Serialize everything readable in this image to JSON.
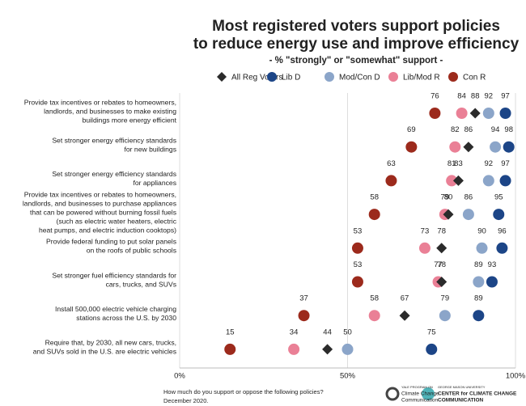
{
  "chart_data": {
    "type": "dot",
    "title": [
      "Most registered voters support policies",
      "to reduce energy use and improve efficiency"
    ],
    "subtitle": "- % \"strongly\" or \"somewhat\" support -",
    "categories": [
      [
        "Provide tax incentives or rebates to homeowners,",
        "landlords, and businesses to make existing",
        "buildings more energy efficient"
      ],
      [
        "Set stronger energy efficiency standards",
        "for new buildings"
      ],
      [
        "Set stronger energy efficiency standards",
        "for appliances"
      ],
      [
        "Provide tax incentives or rebates to homeowners,",
        "landlords, and businesses to purchase appliances",
        "that can be powered without burning fossil fuels",
        "(such as electric water heaters, electric",
        "heat pumps, and electric induction cooktops)"
      ],
      [
        "Provide federal funding to put solar panels",
        "on the roofs of public schools"
      ],
      [
        "Set stronger fuel efficiency standards for",
        "cars, trucks, and SUVs"
      ],
      [
        "Install 500,000 electric vehicle charging",
        "stations across the U.S. by 2030"
      ],
      [
        "Require that, by 2030, all new cars, trucks,",
        "and SUVs sold in the U.S. are electric vehicles"
      ]
    ],
    "series": [
      {
        "name": "All Reg Voters",
        "color": "#2b2b2b",
        "marker": "diamond",
        "values": [
          88,
          86,
          83,
          80,
          78,
          78,
          67,
          44
        ]
      },
      {
        "name": "Lib D",
        "color": "#1c4587",
        "marker": "circle",
        "values": [
          97,
          98,
          97,
          95,
          96,
          93,
          89,
          75
        ]
      },
      {
        "name": "Mod/Con D",
        "color": "#8ba5c9",
        "marker": "circle",
        "values": [
          92,
          94,
          92,
          86,
          90,
          89,
          79,
          50
        ]
      },
      {
        "name": "Lib/Mod R",
        "color": "#ea8096",
        "marker": "circle",
        "values": [
          84,
          82,
          81,
          79,
          73,
          77,
          58,
          34
        ]
      },
      {
        "name": "Con R",
        "color": "#9c2a1c",
        "marker": "circle",
        "values": [
          76,
          69,
          63,
          58,
          53,
          53,
          37,
          15
        ]
      }
    ],
    "xlim": [
      0,
      100
    ],
    "xticks": [
      {
        "value": 0,
        "label": "0%"
      },
      {
        "value": 50,
        "label": "50%"
      },
      {
        "value": 100,
        "label": "100%"
      }
    ],
    "grid": true,
    "footnote": [
      "How much do you support or oppose the following policies?",
      "December 2020."
    ],
    "logos": [
      [
        "YALE PROGRAM ON",
        "Climate Change",
        "Communication"
      ],
      [
        "GEORGE MASON UNIVERSITY",
        "CENTER for CLIMATE CHANGE",
        "COMMUNICATION"
      ]
    ]
  }
}
